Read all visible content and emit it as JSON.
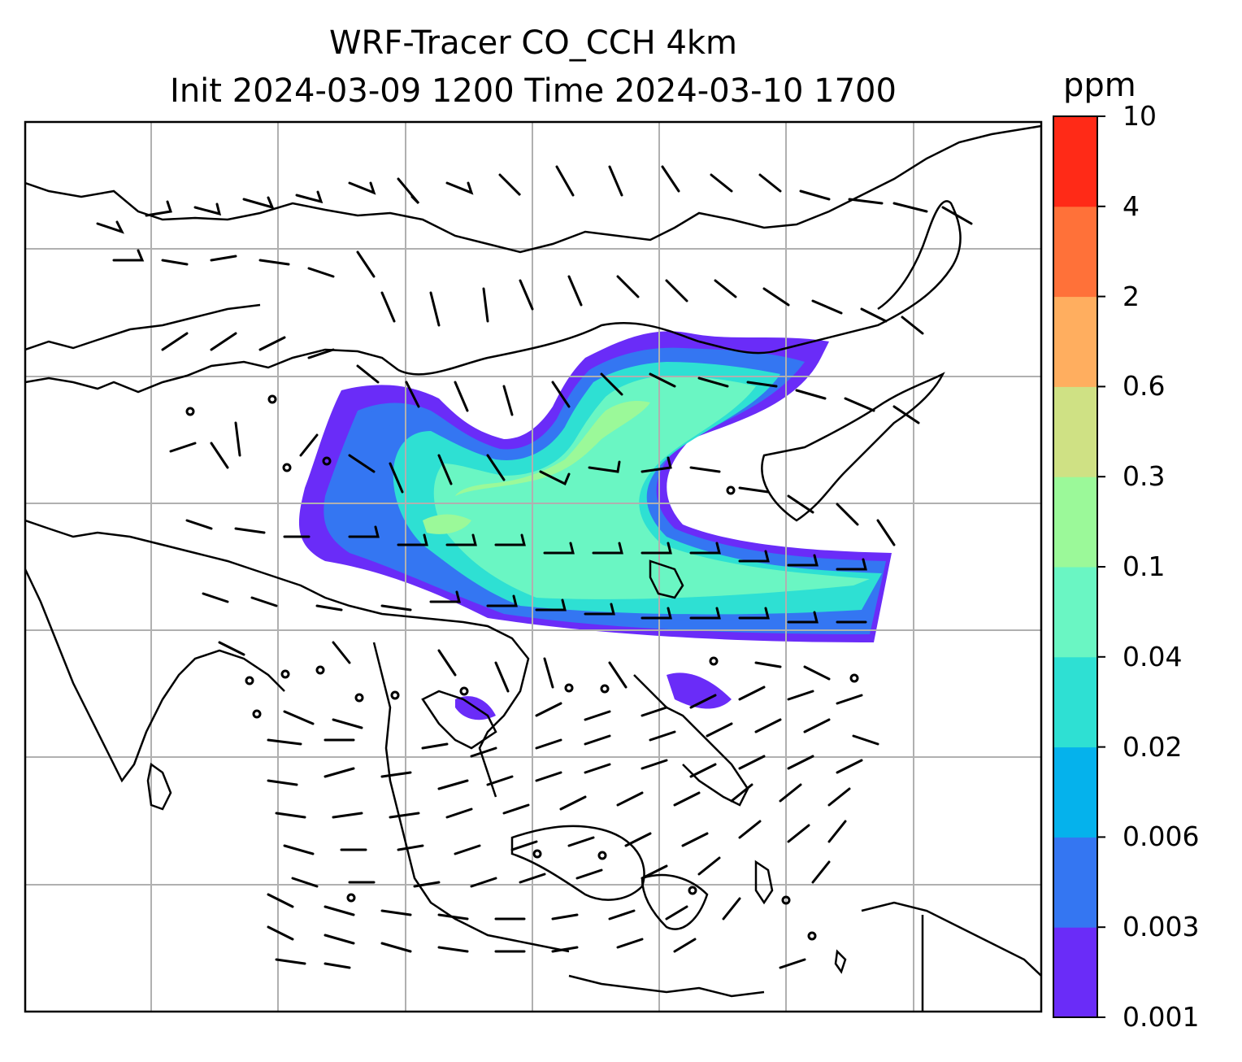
{
  "title": {
    "line1": "WRF-Tracer CO_CCH 4km",
    "line2": "Init 2024-03-09 1200 Time 2024-03-10 1700"
  },
  "colorbar": {
    "unit": "ppm",
    "levels": [
      "0.001",
      "0.003",
      "0.006",
      "0.02",
      "0.04",
      "0.1",
      "0.3",
      "0.6",
      "2",
      "4",
      "10"
    ],
    "colors": [
      "#6a2cf8",
      "#3476f2",
      "#05b2ec",
      "#2ee0d3",
      "#6af6c3",
      "#9bf999",
      "#cfe184",
      "#ffae5f",
      "#ff7139",
      "#ff2a17"
    ]
  },
  "map": {
    "gridlines": true,
    "overlay": "wind-barbs",
    "field": "CO_CCH tracer concentration"
  }
}
